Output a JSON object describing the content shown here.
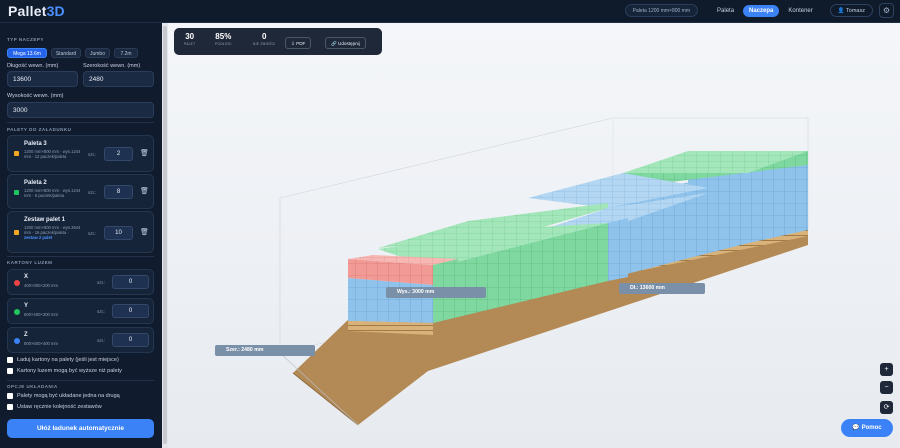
{
  "header": {
    "logo_main": "Pallet",
    "logo_accent": "3D",
    "dimension_pill": "Paleta 1200 mm×800 mm",
    "nav": [
      "Paleta",
      "Naczepa",
      "Kontener"
    ],
    "active_nav": "Naczepa",
    "user_label": "Tomasz",
    "icons": {
      "user": "user-icon",
      "settings": "gear-icon"
    }
  },
  "sidebar": {
    "vehicle_type_title": "TYP NACZEPY",
    "vehicle_types": [
      "Mega 13.6m",
      "Standard",
      "Jumbo",
      "7.2m"
    ],
    "length_label": "Długość wewn. (mm)",
    "length_value": "13600",
    "width_label": "Szerokość wewn. (mm)",
    "width_value": "2480",
    "height_label": "Wysokość wewn. (mm)",
    "height_value": "3000",
    "pallets_title": "PALETY DO ZAŁADUNKU",
    "pallets": [
      {
        "name": "Paleta 3",
        "desc": "1200 mm×800 mm · wys.1244 mm · 12 paczek/paleta",
        "desc_extra": "",
        "qty_label": "szt.:",
        "qty": "2",
        "color": "#f5a623"
      },
      {
        "name": "Paleta 2",
        "desc": "1200 mm×800 mm · wys.1244 mm · 6 paczek/paleta",
        "desc_extra": "",
        "qty_label": "szt.:",
        "qty": "8",
        "color": "#22c55e"
      },
      {
        "name": "Zestaw palet 1",
        "desc": "1200 mm×800 mm · wys.3644 mm · 16 paczek/paleta ·",
        "desc_extra": "zestaw 2 palet",
        "qty_label": "szt.:",
        "qty": "10",
        "color": "#f5a623"
      }
    ],
    "cartons_title": "KARTONY LUZEM",
    "cartons": [
      {
        "name": "X",
        "desc": "400×300×200 mm",
        "qty_label": "szt.:",
        "qty": "0",
        "color": "#ef4444"
      },
      {
        "name": "Y",
        "desc": "600×400×300 mm",
        "qty_label": "szt.:",
        "qty": "0",
        "color": "#22c55e"
      },
      {
        "name": "Z",
        "desc": "800×600×400 mm",
        "qty_label": "szt.:",
        "qty": "0",
        "color": "#3b82f6"
      }
    ],
    "checks_cartons": [
      "Ładuj kartony na palety (jeśli jest miejsce)",
      "Kartony luzem mogą być wyższe niż palety"
    ],
    "options_title": "OPCJE UKŁADANIA",
    "checks_options": [
      "Palety mogą być układane jedna na drugą",
      "Ustaw ręcznie kolejność zestawów"
    ],
    "auto_button": "Ułóż ładunek automatycznie"
  },
  "stats": {
    "pallets_value": "30",
    "pallets_label": "PALET",
    "fill_value": "85%",
    "fill_label": "PODŁOGI",
    "nofit_value": "0",
    "nofit_label": "NIE ZMIEŚCI",
    "pdf_label": "PDF",
    "share_label": "Udostępnij"
  },
  "dimension_tags": {
    "height": "Wys.: 3000 mm",
    "length": "Dł.: 13600 mm",
    "width": "Szer.: 2480 mm"
  },
  "controls": {
    "zoom_in": "+",
    "zoom_out": "−",
    "reset": "⟳"
  },
  "help_label": "Pomoc",
  "colors": {
    "accent": "#3b82f6",
    "sidebar_bg": "#101b2d",
    "box_blue": "#8fc3ec",
    "box_green": "#7fd8a0",
    "box_red": "#f29a96",
    "floor": "#b38a55"
  }
}
